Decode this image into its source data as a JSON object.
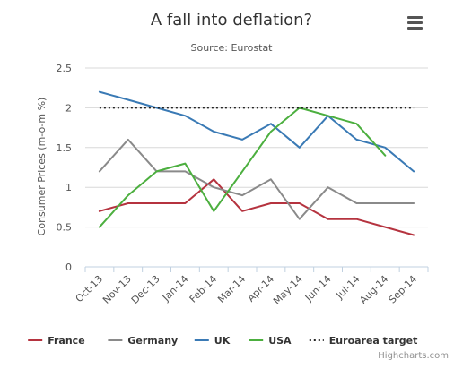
{
  "chart_data": {
    "type": "line",
    "title": "A fall into deflation?",
    "subtitle": "Source: Eurostat",
    "ylabel": "Consumer Prices (m-o-m %)",
    "xlabel": "",
    "categories": [
      "Oct-13",
      "Nov-13",
      "Dec-13",
      "Jan-14",
      "Feb-14",
      "Mar-14",
      "Apr-14",
      "May-14",
      "Jun-14",
      "Jul-14",
      "Aug-14",
      "Sep-14"
    ],
    "ylim": [
      0,
      2.5
    ],
    "yticks": [
      "0",
      "0.5",
      "1",
      "1.5",
      "2",
      "2.5"
    ],
    "grid": true,
    "legend_position": "bottom",
    "series": [
      {
        "name": "France",
        "color": "#b5333f",
        "style": "solid",
        "values": [
          0.7,
          0.8,
          0.8,
          0.8,
          1.1,
          0.7,
          0.8,
          0.8,
          0.6,
          0.6,
          0.5,
          0.4
        ]
      },
      {
        "name": "Germany",
        "color": "#8a8a8a",
        "style": "solid",
        "values": [
          1.2,
          1.6,
          1.2,
          1.2,
          1.0,
          0.9,
          1.1,
          0.6,
          1.0,
          0.8,
          0.8,
          0.8
        ]
      },
      {
        "name": "UK",
        "color": "#3a7ab5",
        "style": "solid",
        "values": [
          2.2,
          2.1,
          2.0,
          1.9,
          1.7,
          1.6,
          1.8,
          1.5,
          1.9,
          1.6,
          1.5,
          1.2
        ]
      },
      {
        "name": "USA",
        "color": "#4caf3f",
        "style": "solid",
        "values": [
          0.5,
          0.9,
          1.2,
          1.3,
          0.7,
          1.2,
          1.7,
          2.0,
          1.9,
          1.8,
          1.4,
          null
        ]
      },
      {
        "name": "Euroarea target",
        "color": "#222222",
        "style": "dotted",
        "values": [
          2.0,
          2.0,
          2.0,
          2.0,
          2.0,
          2.0,
          2.0,
          2.0,
          2.0,
          2.0,
          2.0,
          2.0
        ]
      }
    ]
  },
  "ui": {
    "menu_icon": "hamburger-menu-icon",
    "credits": "Highcharts.com"
  }
}
